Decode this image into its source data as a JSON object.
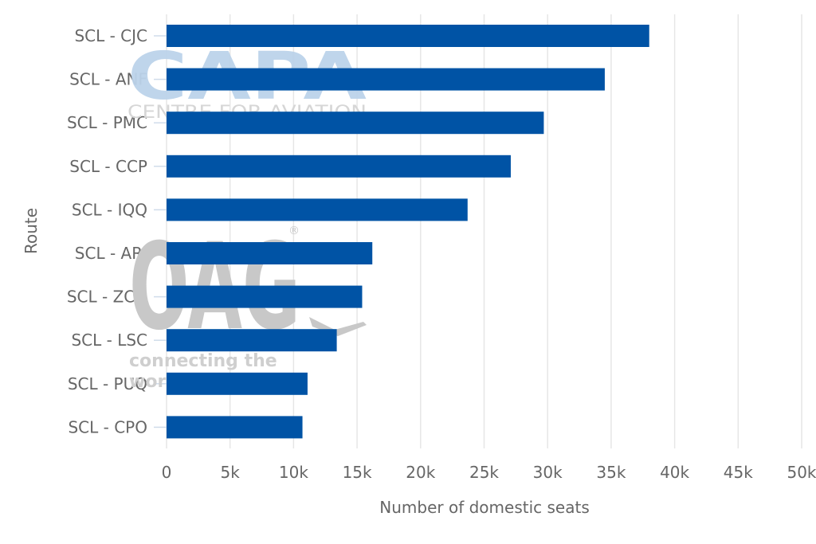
{
  "chart_data": {
    "type": "bar",
    "orientation": "horizontal",
    "categories": [
      "SCL - CJC",
      "SCL - ANF",
      "SCL - PMC",
      "SCL - CCP",
      "SCL - IQQ",
      "SCL - ARI",
      "SCL - ZCO",
      "SCL - LSC",
      "SCL - PUQ",
      "SCL - CPO"
    ],
    "values": [
      38000,
      34500,
      29700,
      27100,
      23700,
      16200,
      15400,
      13400,
      11100,
      10700
    ],
    "xlabel": "Number of domestic seats",
    "ylabel": "Route",
    "xlim": [
      0,
      50000
    ],
    "xticks": [
      0,
      5000,
      10000,
      15000,
      20000,
      25000,
      30000,
      35000,
      40000,
      45000,
      50000
    ],
    "xtick_labels": [
      "0",
      "5k",
      "10k",
      "15k",
      "20k",
      "25k",
      "30k",
      "35k",
      "40k",
      "45k",
      "50k"
    ],
    "grid": true,
    "bar_color": "#0053a5",
    "grid_color": "#e6e6e6"
  },
  "watermarks": {
    "capa": {
      "logo": "CAPA",
      "tagline": "CENTRE FOR AVIATION",
      "color": "#bcd3ea"
    },
    "oag": {
      "logo": "OAG",
      "registered": "®",
      "tagline_1": "connecting the",
      "tagline_2": "world of travel",
      "color": "#cccccc"
    }
  }
}
